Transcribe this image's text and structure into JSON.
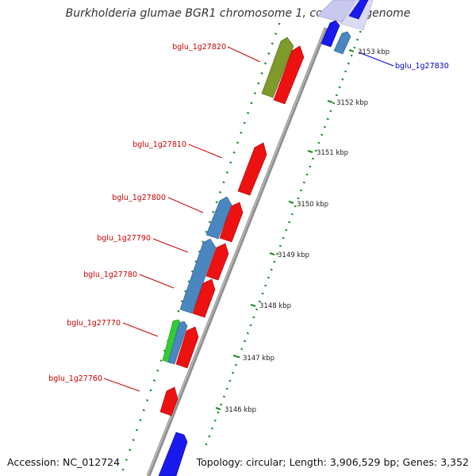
{
  "title": "Burkholderia glumae BGR1 chromosome 1, complete genome",
  "footer": {
    "accession": "Accession: NC_012724",
    "summary": "Topology: circular; Length: 3,906,529 bp; Genes: 3,352"
  },
  "colors": {
    "backbone": "#8f8f8f",
    "cds_red": "#ee1111",
    "cds_blue_steel": "#4a86c0",
    "cds_blue_bright": "#1a1aee",
    "cds_olive": "#7d9a2a",
    "cds_green": "#33cc33",
    "gc_ticks": "#1f8a1f",
    "label_red": "#cc0000",
    "label_blue": "#0000cc"
  },
  "ruler_labels": [
    {
      "value": 3146,
      "text": "3146 kbp"
    },
    {
      "value": 3147,
      "text": "3147 kbp"
    },
    {
      "value": 3148,
      "text": "3148 kbp"
    },
    {
      "value": 3149,
      "text": "3149 kbp"
    },
    {
      "value": 3150,
      "text": "3150 kbp"
    },
    {
      "value": 3151,
      "text": "3151 kbp"
    },
    {
      "value": 3152,
      "text": "3152 kbp"
    },
    {
      "value": 3153,
      "text": "3153 kbp"
    }
  ],
  "gene_labels": [
    {
      "id": "bglu_1g27820",
      "text": "bglu_1g27820",
      "color": "red"
    },
    {
      "id": "bglu_1g27830",
      "text": "bglu_1g27830",
      "color": "blue"
    },
    {
      "id": "bglu_1g27810",
      "text": "bglu_1g27810",
      "color": "red"
    },
    {
      "id": "bglu_1g27800",
      "text": "bglu_1g27800",
      "color": "red"
    },
    {
      "id": "bglu_1g27790",
      "text": "bglu_1g27790",
      "color": "red"
    },
    {
      "id": "bglu_1g27780",
      "text": "bglu_1g27780",
      "color": "red"
    },
    {
      "id": "bglu_1g27770",
      "text": "bglu_1g27770",
      "color": "red"
    },
    {
      "id": "bglu_1g27760",
      "text": "bglu_1g27760",
      "color": "red"
    }
  ]
}
